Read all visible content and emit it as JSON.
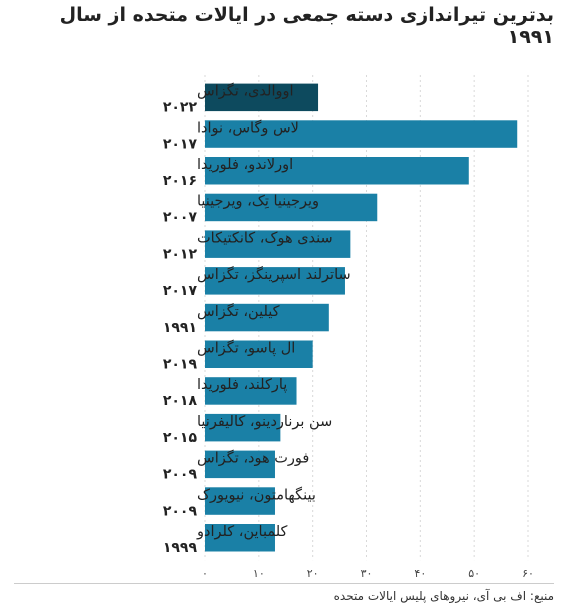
{
  "chart_data": {
    "type": "bar",
    "orientation": "horizontal",
    "title": "بدترین تیراندازی دسته جمعی در ایالات متحده از سال ۱۹۹۱",
    "categories": [
      {
        "name": "اووالدی، تگزاس",
        "year": "۲۰۲۲"
      },
      {
        "name": "لاس وگاس، نوادا",
        "year": "۲۰۱۷"
      },
      {
        "name": "اورلاندو، فلوریدا",
        "year": "۲۰۱۶"
      },
      {
        "name": "ویرجینیا تِک، ویرجینیا",
        "year": "۲۰۰۷"
      },
      {
        "name": "سندی هوک، کانکتیکات",
        "year": "۲۰۱۲"
      },
      {
        "name": "ساترلند اسپرینگز، تگزاس",
        "year": "۲۰۱۷"
      },
      {
        "name": "کیلین، تگزاس",
        "year": "۱۹۹۱"
      },
      {
        "name": "ال پاسو، تگزاس",
        "year": "۲۰۱۹"
      },
      {
        "name": "پارکلند، فلوریدا",
        "year": "۲۰۱۸"
      },
      {
        "name": "سن برناردینو، کالیفرنیا",
        "year": "۲۰۱۵"
      },
      {
        "name": "فورت هود، تگزاس",
        "year": "۲۰۰۹"
      },
      {
        "name": "بینگهامتون، نیویورک",
        "year": "۲۰۰۹"
      },
      {
        "name": "کلمباین، کلرادو",
        "year": "۱۹۹۹"
      }
    ],
    "values": [
      21,
      58,
      49,
      32,
      27,
      26,
      23,
      20,
      17,
      14,
      13,
      13,
      13
    ],
    "xlim": [
      0,
      60
    ],
    "ticks": [
      0,
      10,
      20,
      30,
      40,
      50,
      60
    ],
    "tick_labels": [
      "۰",
      "۱۰",
      "۲۰",
      "۳۰",
      "۴۰",
      "۵۰",
      "۶۰"
    ],
    "colors": {
      "highlight": "#0d4a5e",
      "bar": "#1a80a6",
      "grid": "#d9d9d9"
    },
    "highlight_index": 0,
    "grid": true
  },
  "source_text": "منبع: اف بی آی، نیروهای پلیس ایالات متحده"
}
